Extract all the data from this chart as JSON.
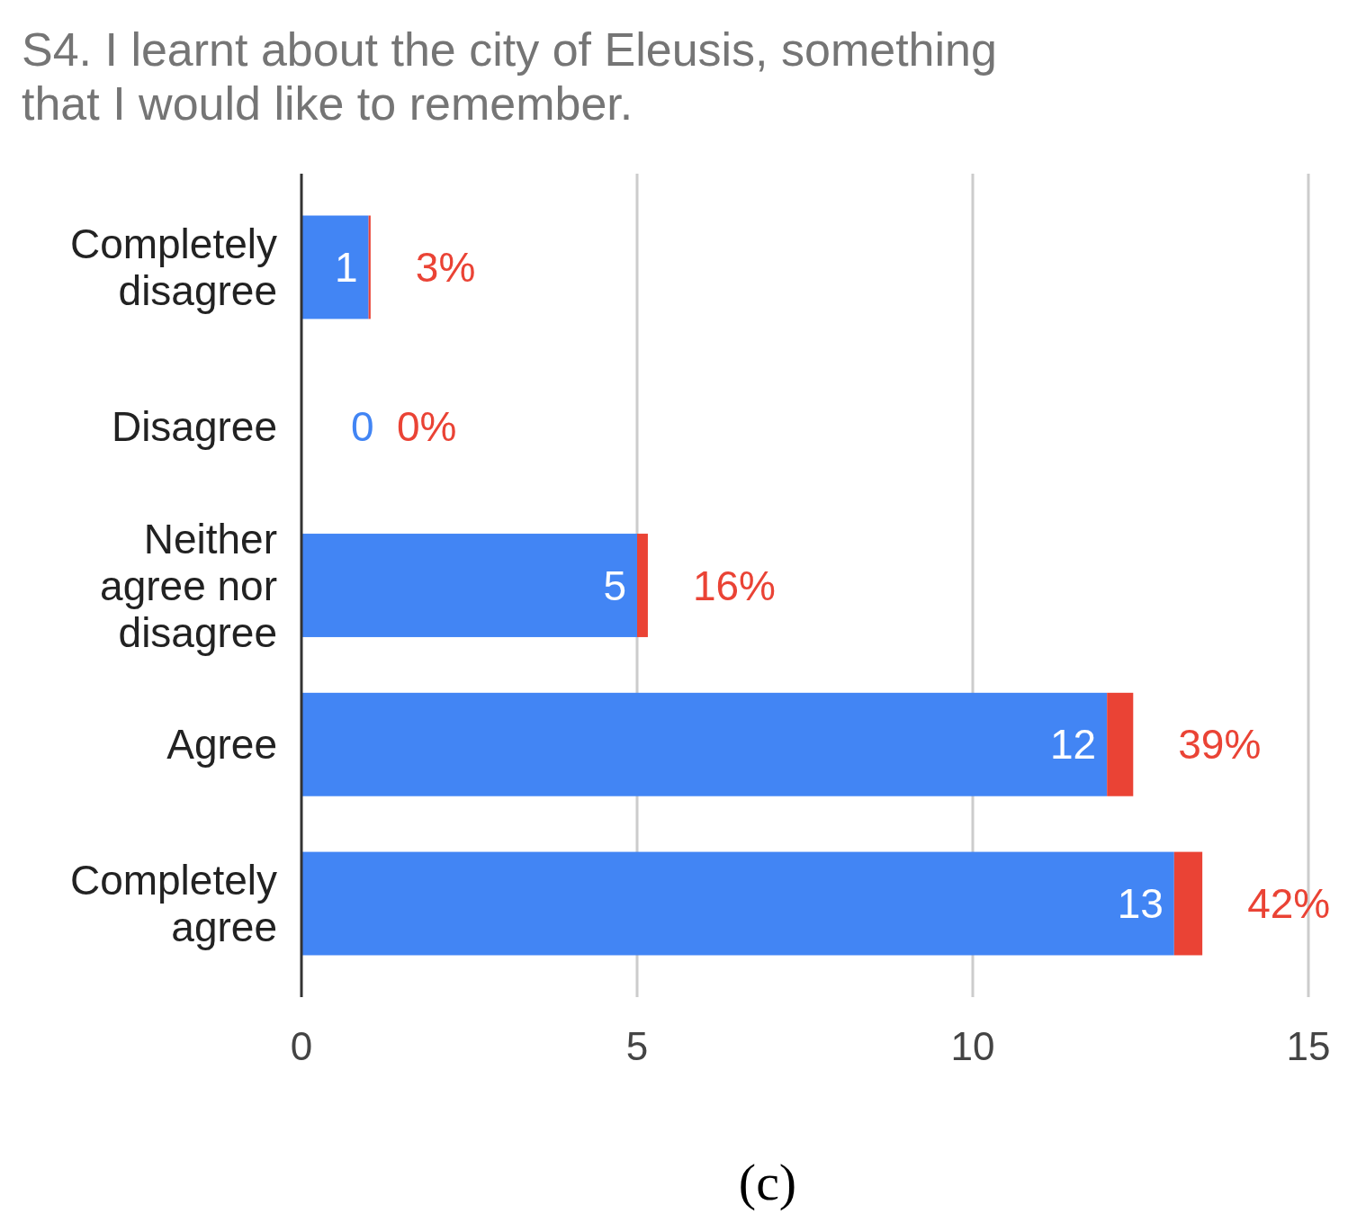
{
  "chart_data": {
    "type": "bar",
    "orientation": "horizontal",
    "stacked": true,
    "title": "S4. I learnt about the city of Eleusis, something that I would like to remember.",
    "categories": [
      "Completely disagree",
      "Disagree",
      "Neither agree nor disagree",
      "Agree",
      "Completely agree"
    ],
    "series": [
      {
        "color": "#4285f4",
        "values": [
          1,
          0,
          5,
          12,
          13
        ],
        "value_labels": [
          "1",
          "0",
          "5",
          "12",
          "13"
        ]
      },
      {
        "color": "#ea4335",
        "values": [
          0.03,
          0,
          0.16,
          0.39,
          0.42
        ],
        "value_labels": [
          "3%",
          "0%",
          "16%",
          "39%",
          "42%"
        ]
      }
    ],
    "xlim": [
      0,
      15
    ],
    "xticks": [
      0,
      5,
      10,
      15
    ],
    "grid": "x",
    "annotations": [
      "(c)"
    ]
  }
}
